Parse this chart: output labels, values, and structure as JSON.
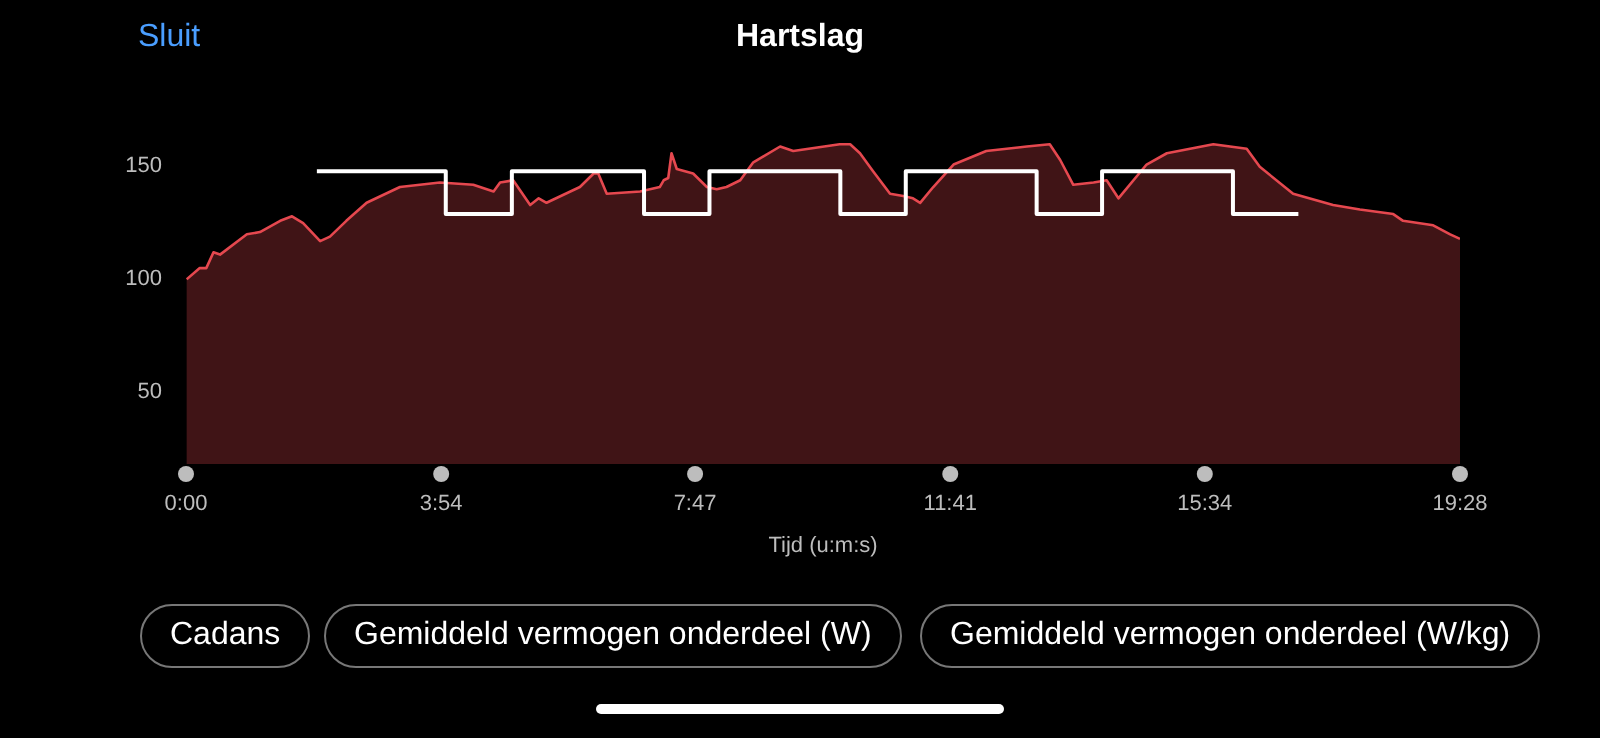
{
  "chart_data": {
    "type": "area",
    "title": "Hartslag",
    "xlabel": "Tijd (u:m:s)",
    "annotations": [
      "Sluit",
      "Cadans",
      "Gemiddeld vermogen onderdeel (W)",
      "Gemiddeld vermogen onderdeel (W/kg)"
    ],
    "xlim": [
      0,
      19.47
    ],
    "xticks": [
      {
        "value": 0,
        "label": "0:00"
      },
      {
        "value": 3.9,
        "label": "3:54"
      },
      {
        "value": 7.78,
        "label": "7:47"
      },
      {
        "value": 11.68,
        "label": "11:41"
      },
      {
        "value": 15.57,
        "label": "15:34"
      },
      {
        "value": 19.47,
        "label": "19:28"
      }
    ],
    "ylim": [
      17,
      160
    ],
    "yticks": [
      50,
      100,
      150
    ],
    "grid": false,
    "legend": false,
    "marker": "none",
    "series": [
      {
        "type": "area",
        "color": "#e5484f",
        "x": [
          0.01,
          0.21,
          0.31,
          0.42,
          0.52,
          0.93,
          1.13,
          1.44,
          1.62,
          1.79,
          2.05,
          2.2,
          2.45,
          2.76,
          3.27,
          3.88,
          4.39,
          4.7,
          4.8,
          5.0,
          5.26,
          5.39,
          5.51,
          6.02,
          6.23,
          6.3,
          6.43,
          6.94,
          7.24,
          7.3,
          7.37,
          7.42,
          7.5,
          7.75,
          7.96,
          8.11,
          8.26,
          8.47,
          8.67,
          9.08,
          9.28,
          9.99,
          10.15,
          10.3,
          10.5,
          10.76,
          10.96,
          11.11,
          11.22,
          11.42,
          11.73,
          12.23,
          12.85,
          13.2,
          13.36,
          13.56,
          13.87,
          14.07,
          14.25,
          14.68,
          14.99,
          15.7,
          16.21,
          16.41,
          16.92,
          17.53,
          17.94,
          18.45,
          18.6,
          19.06,
          19.32,
          19.47
        ],
        "values": [
          99,
          104,
          104,
          111,
          110,
          119,
          120,
          125,
          127,
          124,
          116,
          118,
          125,
          133,
          140,
          142,
          141,
          138,
          142,
          143,
          132,
          135,
          133,
          140,
          146,
          146,
          137,
          138,
          140,
          143,
          144,
          155,
          148,
          146,
          140,
          139,
          140,
          143,
          151,
          158,
          156,
          159,
          159,
          155,
          147,
          137,
          136,
          135,
          133,
          140,
          150,
          156,
          158,
          159,
          152,
          141,
          142,
          143,
          135,
          150,
          155,
          159,
          157,
          149,
          137,
          132,
          130,
          128,
          125,
          123,
          119,
          117
        ]
      },
      {
        "type": "step",
        "color": "#ffffff",
        "x": [
          2.0,
          3.97,
          4.98,
          7.0,
          8.0,
          10.0,
          11.0,
          13.0,
          14.0,
          16.0,
          17.0
        ],
        "values": [
          147,
          128,
          147,
          128,
          147,
          128,
          147,
          128,
          147,
          128,
          128
        ]
      }
    ]
  }
}
